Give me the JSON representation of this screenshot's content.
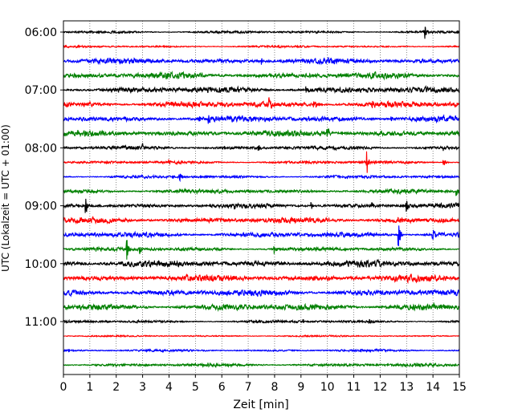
{
  "chart_data": {
    "type": "line",
    "title": "",
    "xlabel": "Zeit  [min]",
    "ylabel": "UTC (Lokalzeit = UTC + 01:00)",
    "xlim": [
      0,
      15
    ],
    "x_ticks": [
      0,
      1,
      2,
      3,
      4,
      5,
      6,
      7,
      8,
      9,
      10,
      11,
      12,
      13,
      14,
      15
    ],
    "y_tick_labels": [
      "06:00",
      "07:00",
      "08:00",
      "09:00",
      "10:00",
      "11:00"
    ],
    "grid": "vertical dotted",
    "colors": [
      "#000000",
      "#ff0000",
      "#0000ff",
      "#008000"
    ],
    "traces": [
      {
        "start": "06:00",
        "color": "#000000",
        "noise": 1.2,
        "events": [
          {
            "t": 2.1,
            "amp": 3
          },
          {
            "t": 13.7,
            "amp": 9
          }
        ]
      },
      {
        "start": "06:15",
        "color": "#ff0000",
        "noise": 1.0,
        "events": []
      },
      {
        "start": "06:30",
        "color": "#0000ff",
        "noise": 2.8,
        "events": [
          {
            "t": 7.5,
            "amp": 4
          }
        ]
      },
      {
        "start": "06:45",
        "color": "#008000",
        "noise": 3.0,
        "events": [
          {
            "t": 13.0,
            "amp": 4
          }
        ]
      },
      {
        "start": "07:00",
        "color": "#000000",
        "noise": 3.0,
        "events": [
          {
            "t": 9.2,
            "amp": 4
          }
        ]
      },
      {
        "start": "07:15",
        "color": "#ff0000",
        "noise": 3.0,
        "events": [
          {
            "t": 7.8,
            "amp": 10
          },
          {
            "t": 9.5,
            "amp": 8
          },
          {
            "t": 11.7,
            "amp": 9
          },
          {
            "t": 14.9,
            "amp": 4
          }
        ]
      },
      {
        "start": "07:30",
        "color": "#0000ff",
        "noise": 2.8,
        "events": [
          {
            "t": 5.1,
            "amp": 7
          },
          {
            "t": 5.5,
            "amp": 8
          },
          {
            "t": 9.3,
            "amp": 4
          },
          {
            "t": 12.4,
            "amp": 4
          }
        ]
      },
      {
        "start": "07:45",
        "color": "#008000",
        "noise": 3.0,
        "events": [
          {
            "t": 10.0,
            "amp": 8
          }
        ]
      },
      {
        "start": "08:00",
        "color": "#000000",
        "noise": 1.8,
        "events": [
          {
            "t": 3.0,
            "amp": 5
          },
          {
            "t": 7.4,
            "amp": 5
          },
          {
            "t": 14.4,
            "amp": 3
          }
        ]
      },
      {
        "start": "08:15",
        "color": "#ff0000",
        "noise": 1.4,
        "events": [
          {
            "t": 4.0,
            "amp": 3
          },
          {
            "t": 11.5,
            "amp": 14
          },
          {
            "t": 14.4,
            "amp": 7
          }
        ]
      },
      {
        "start": "08:30",
        "color": "#0000ff",
        "noise": 1.4,
        "events": [
          {
            "t": 4.4,
            "amp": 6
          }
        ]
      },
      {
        "start": "08:45",
        "color": "#008000",
        "noise": 2.0,
        "events": [
          {
            "t": 14.9,
            "amp": 6
          }
        ]
      },
      {
        "start": "09:00",
        "color": "#000000",
        "noise": 2.2,
        "events": [
          {
            "t": 0.85,
            "amp": 12
          },
          {
            "t": 6.5,
            "amp": 3
          },
          {
            "t": 9.4,
            "amp": 5
          },
          {
            "t": 11.7,
            "amp": 4
          },
          {
            "t": 13.0,
            "amp": 9
          }
        ]
      },
      {
        "start": "09:15",
        "color": "#ff0000",
        "noise": 2.8,
        "events": [
          {
            "t": 12.7,
            "amp": 4
          },
          {
            "t": 14.4,
            "amp": 3
          }
        ]
      },
      {
        "start": "09:30",
        "color": "#0000ff",
        "noise": 2.5,
        "events": [
          {
            "t": 1.2,
            "amp": 4
          },
          {
            "t": 12.7,
            "amp": 16
          },
          {
            "t": 14.0,
            "amp": 12
          }
        ]
      },
      {
        "start": "09:45",
        "color": "#008000",
        "noise": 1.8,
        "events": [
          {
            "t": 1.2,
            "amp": 5
          },
          {
            "t": 2.4,
            "amp": 14
          },
          {
            "t": 2.9,
            "amp": 6
          },
          {
            "t": 8.0,
            "amp": 7
          }
        ]
      },
      {
        "start": "10:00",
        "color": "#000000",
        "noise": 3.2,
        "events": []
      },
      {
        "start": "10:15",
        "color": "#ff0000",
        "noise": 3.2,
        "events": [
          {
            "t": 13.5,
            "amp": 4
          }
        ]
      },
      {
        "start": "10:30",
        "color": "#0000ff",
        "noise": 3.2,
        "events": []
      },
      {
        "start": "10:45",
        "color": "#008000",
        "noise": 3.2,
        "events": []
      },
      {
        "start": "11:00",
        "color": "#000000",
        "noise": 1.3,
        "events": [
          {
            "t": 2.8,
            "amp": 3
          },
          {
            "t": 9.1,
            "amp": 3
          },
          {
            "t": 11.6,
            "amp": 4
          }
        ]
      },
      {
        "start": "11:15",
        "color": "#ff0000",
        "noise": 0.8,
        "events": []
      },
      {
        "start": "11:30",
        "color": "#0000ff",
        "noise": 1.1,
        "events": [
          {
            "t": 0.2,
            "amp": 3
          }
        ]
      },
      {
        "start": "11:45",
        "color": "#008000",
        "noise": 1.5,
        "events": [
          {
            "t": 5.5,
            "amp": 3
          }
        ]
      }
    ]
  }
}
